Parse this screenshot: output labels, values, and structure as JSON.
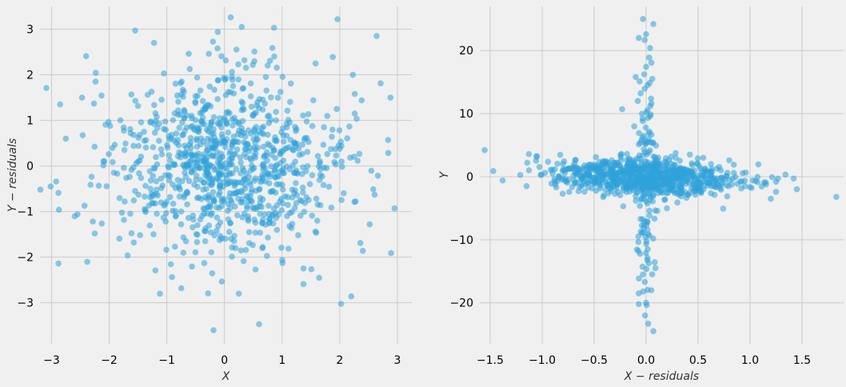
{
  "chart_data": [
    {
      "type": "scatter",
      "title": "",
      "xlabel": "X",
      "ylabel": "Y − residuals",
      "xlim": [
        -3.2,
        3.25
      ],
      "ylim": [
        -3.9,
        3.5
      ],
      "xticks": [
        -3,
        -2,
        -1,
        0,
        1,
        2,
        3
      ],
      "xtick_labels": [
        "−3",
        "−2",
        "−1",
        "0",
        "1",
        "2",
        "3"
      ],
      "yticks": [
        -3,
        -2,
        -1,
        0,
        1,
        2,
        3
      ],
      "ytick_labels": [
        "−3",
        "−2",
        "−1",
        "0",
        "1",
        "2",
        "3"
      ],
      "grid": true,
      "color": "#30a2da",
      "point_count": 1000,
      "points": [
        [
          0.11,
          3.26
        ],
        [
          0.3,
          3.05
        ],
        [
          1.96,
          3.22
        ],
        [
          -1.55,
          2.97
        ],
        [
          2.64,
          2.85
        ],
        [
          -2.4,
          2.41
        ],
        [
          0.52,
          2.51
        ],
        [
          -0.62,
          2.46
        ],
        [
          -1.22,
          2.7
        ],
        [
          -0.27,
          2.46
        ],
        [
          -0.12,
          2.58
        ],
        [
          0.24,
          2.23
        ],
        [
          0.79,
          2.31
        ],
        [
          1.58,
          2.25
        ],
        [
          1.88,
          2.39
        ],
        [
          -2.85,
          1.35
        ],
        [
          -2.47,
          1.5
        ],
        [
          -1.05,
          2.03
        ],
        [
          2.95,
          -0.93
        ],
        [
          -2.92,
          -0.34
        ],
        [
          -2.88,
          -2.14
        ],
        [
          -2.55,
          -1.06
        ],
        [
          -2.38,
          -2.1
        ],
        [
          -1.12,
          -2.8
        ],
        [
          -0.19,
          -3.6
        ],
        [
          0.6,
          -3.47
        ],
        [
          0.25,
          -2.8
        ],
        [
          2.2,
          -2.86
        ],
        [
          1.37,
          -2.59
        ],
        [
          2.52,
          -1.28
        ],
        [
          2.84,
          0.57
        ],
        [
          2.88,
          1.5
        ],
        [
          2.26,
          1.58
        ],
        [
          2.38,
          1.44
        ],
        [
          2.26,
          1.15
        ],
        [
          -1.2,
          -0.82
        ],
        [
          1.61,
          -1.2
        ],
        [
          2.4,
          -1.86
        ],
        [
          -1.68,
          -1.96
        ],
        [
          -2.25,
          -1.48
        ]
      ]
    },
    {
      "type": "scatter",
      "title": "",
      "xlabel": "X − residuals",
      "ylabel": "Y",
      "xlim": [
        -1.6,
        1.9
      ],
      "ylim": [
        -26.5,
        27
      ],
      "xticks": [
        -1.5,
        -1.0,
        -0.5,
        0.0,
        0.5,
        1.0,
        1.5
      ],
      "xtick_labels": [
        "−1.5",
        "−1.0",
        "−0.5",
        "0.0",
        "0.5",
        "1.0",
        "1.5"
      ],
      "yticks": [
        -20,
        -10,
        0,
        10,
        20
      ],
      "ytick_labels": [
        "−20",
        "−10",
        "0",
        "10",
        "20"
      ],
      "grid": true,
      "color": "#30a2da",
      "point_count": 1000,
      "points": [
        [
          -0.03,
          25.0
        ],
        [
          0.07,
          24.2
        ],
        [
          -0.07,
          22.0
        ],
        [
          0.0,
          22.6
        ],
        [
          0.03,
          18.9
        ],
        [
          -0.1,
          15.8
        ],
        [
          0.06,
          15.5
        ],
        [
          -0.08,
          12.0
        ],
        [
          0.04,
          11.2
        ],
        [
          -0.23,
          10.7
        ],
        [
          0.0,
          -20.0
        ],
        [
          -0.07,
          -20.2
        ],
        [
          -0.01,
          -22.0
        ],
        [
          0.02,
          -23.3
        ],
        [
          0.07,
          -24.5
        ],
        [
          0.05,
          -18.0
        ],
        [
          -0.03,
          -15.5
        ],
        [
          0.09,
          -14.5
        ],
        [
          -1.47,
          0.9
        ],
        [
          -1.38,
          -0.6
        ],
        [
          -1.05,
          3.2
        ],
        [
          -1.15,
          -1.5
        ],
        [
          1.08,
          1.95
        ],
        [
          1.15,
          -0.9
        ],
        [
          1.25,
          -0.8
        ],
        [
          1.25,
          -2.4
        ],
        [
          1.42,
          -0.3
        ],
        [
          1.45,
          -2.0
        ],
        [
          1.83,
          -3.2
        ],
        [
          1.2,
          -3.5
        ],
        [
          -0.22,
          -4.7
        ],
        [
          0.2,
          -5.0
        ],
        [
          0.55,
          3.0
        ],
        [
          0.8,
          2.6
        ],
        [
          -0.65,
          -2.3
        ]
      ]
    }
  ]
}
